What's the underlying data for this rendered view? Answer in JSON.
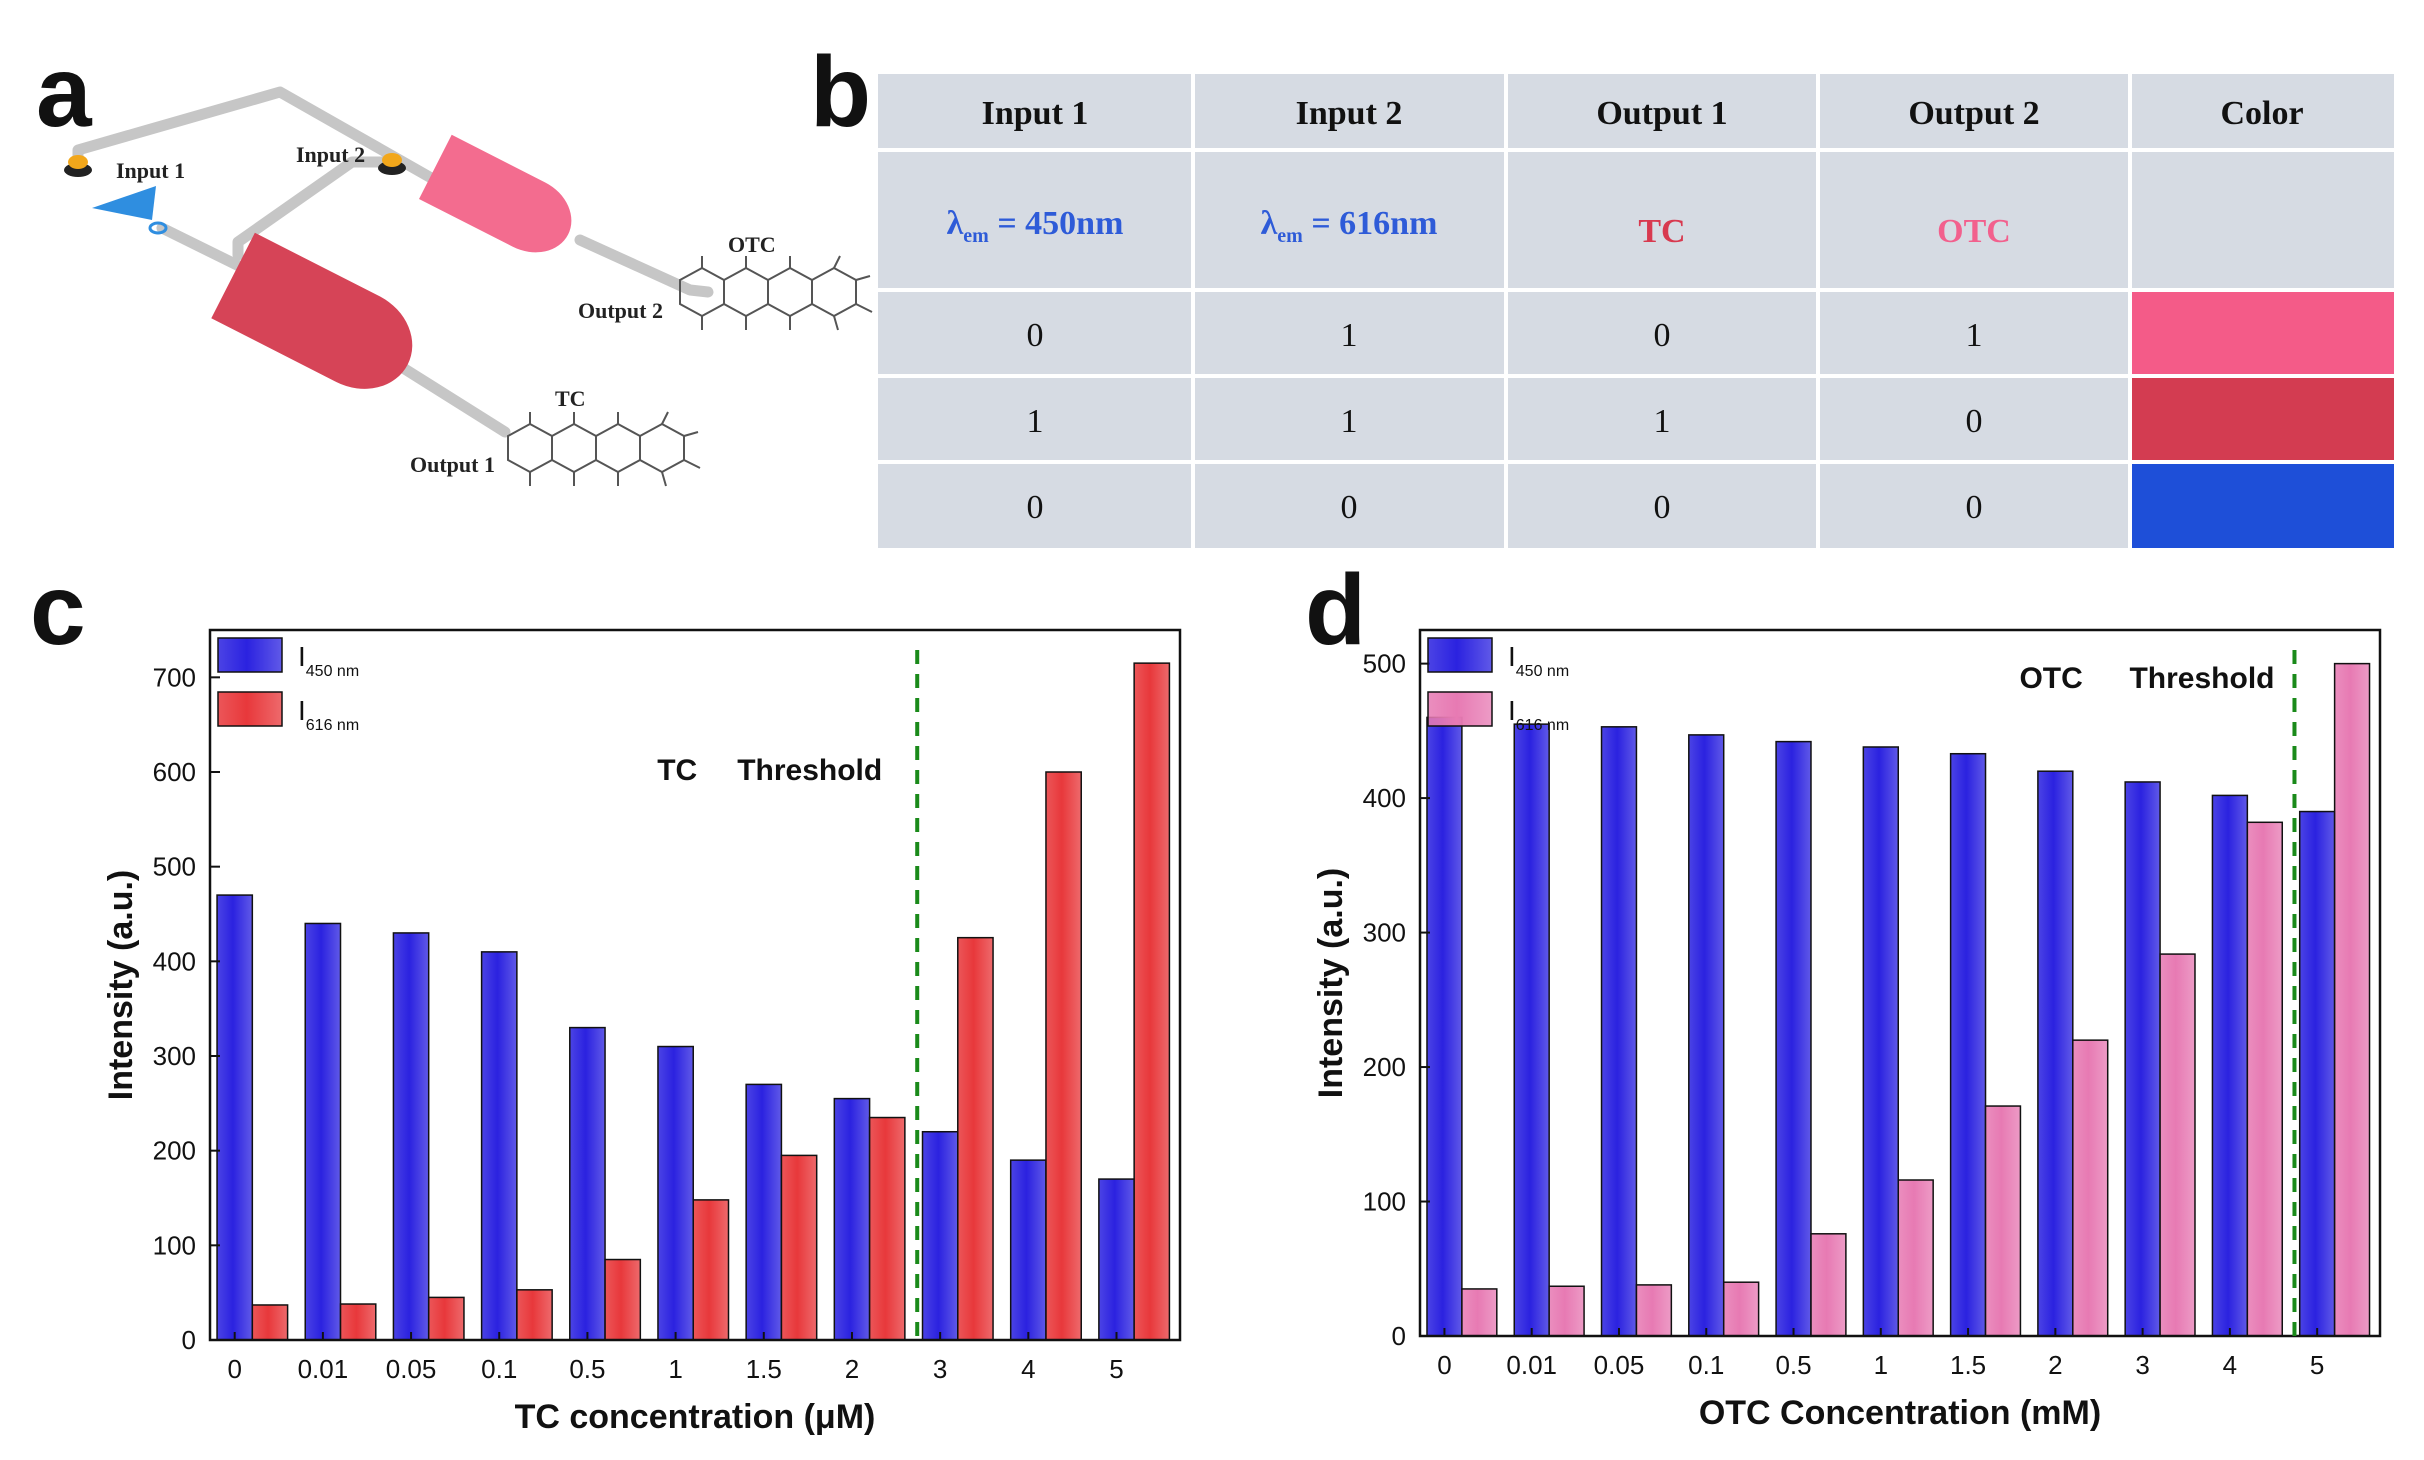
{
  "panels": {
    "a": "a",
    "b": "b",
    "c": "c",
    "d": "d"
  },
  "circuit": {
    "input1": "Input 1",
    "input2": "Input 2",
    "output1": "Output 1",
    "output2": "Output 2",
    "tc_label": "TC",
    "otc_label": "OTC",
    "colors": {
      "and_gate": "#d64457",
      "or_gate": "#f36c8f",
      "wire": "#c6c6c6",
      "input_triangle": "#2f8ee0",
      "switch": "#f2a71b"
    }
  },
  "truth_table": {
    "headers": [
      "Input 1",
      "Input 2",
      "Output 1",
      "Output 2",
      "Color"
    ],
    "condition_row": {
      "input1_symbol": "λ",
      "input1_sub": "em",
      "input1_value": " = 450nm",
      "input2_symbol": "λ",
      "input2_sub": "em",
      "input2_value": " = 616nm",
      "output1": "TC",
      "output2": "OTC"
    },
    "rows": [
      {
        "input1": "0",
        "input2": "1",
        "output1": "0",
        "output2": "1",
        "color": "#f45b88"
      },
      {
        "input1": "1",
        "input2": "1",
        "output1": "1",
        "output2": "0",
        "color": "#d33c51"
      },
      {
        "input1": "0",
        "input2": "0",
        "output1": "0",
        "output2": "0",
        "color": "#1e4fd8"
      }
    ],
    "colors": {
      "cell_bg": "#d6dbe3",
      "blue_text": "#2e5bd8",
      "tc_text": "#d8394f",
      "otc_text": "#f2608d"
    }
  },
  "chart_data": [
    {
      "panel": "c",
      "type": "bar",
      "categories": [
        "0",
        "0.01",
        "0.05",
        "0.1",
        "0.5",
        "1",
        "1.5",
        "2",
        "3",
        "4",
        "5"
      ],
      "series": [
        {
          "name": "I",
          "subscript": "450 nm",
          "color": "#2b22e0",
          "values": [
            470,
            440,
            430,
            410,
            330,
            310,
            270,
            255,
            220,
            190,
            170
          ]
        },
        {
          "name": "I",
          "subscript": "616 nm",
          "color": "#e8383b",
          "values": [
            37,
            38,
            45,
            53,
            85,
            148,
            195,
            235,
            425,
            600,
            715
          ]
        }
      ],
      "xlabel": "TC concentration (μM)",
      "ylabel": "Intensity (a.u.)",
      "ylim": [
        0,
        750
      ],
      "yticks": [
        0,
        100,
        200,
        300,
        400,
        500,
        600,
        700
      ],
      "threshold_after_index": 7,
      "annotation_name": "TC",
      "annotation_threshold": "Threshold"
    },
    {
      "panel": "d",
      "type": "bar",
      "categories": [
        "0",
        "0.01",
        "0.05",
        "0.1",
        "0.5",
        "1",
        "1.5",
        "2",
        "3",
        "4",
        "5"
      ],
      "series": [
        {
          "name": "I",
          "subscript": "450 nm",
          "color": "#2b22e0",
          "values": [
            460,
            455,
            453,
            447,
            442,
            438,
            433,
            420,
            412,
            402,
            390
          ]
        },
        {
          "name": "I",
          "subscript": "616 nm",
          "color": "#e77ab3",
          "values": [
            35,
            37,
            38,
            40,
            76,
            116,
            171,
            220,
            284,
            382,
            500
          ]
        }
      ],
      "xlabel": "OTC Concentration (mM)",
      "ylabel": "Intensity (a.u.)",
      "ylim": [
        0,
        525
      ],
      "yticks": [
        0,
        100,
        200,
        300,
        400,
        500
      ],
      "threshold_after_index": 9,
      "annotation_name": "OTC",
      "annotation_threshold": "Threshold"
    }
  ]
}
